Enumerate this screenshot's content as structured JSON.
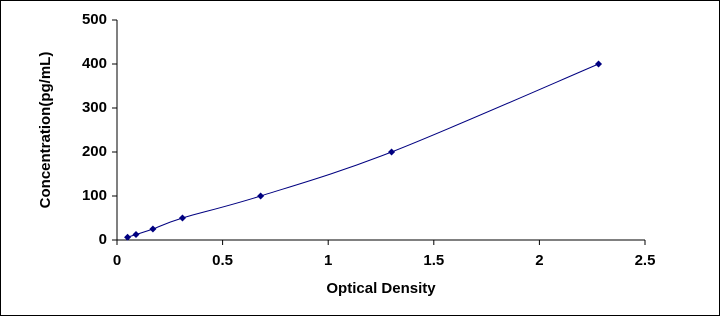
{
  "chart_data": {
    "type": "scatter",
    "x_label": "Optical Density",
    "y_label": "Concentration(pg/mL)",
    "series": [
      {
        "color": "#000080",
        "x": [
          0.05,
          0.09,
          0.17,
          0.31,
          0.68,
          1.3,
          2.28
        ],
        "values": [
          6.25,
          12.5,
          25,
          50,
          100,
          200,
          400
        ]
      }
    ],
    "xlim": [
      0,
      2.5
    ],
    "xticks": [
      0,
      0.5,
      1,
      1.5,
      2,
      2.5
    ],
    "ylim": [
      0,
      500
    ],
    "yticks": [
      0,
      100,
      200,
      300,
      400,
      500
    ],
    "grid": false,
    "smooth_line": true
  }
}
